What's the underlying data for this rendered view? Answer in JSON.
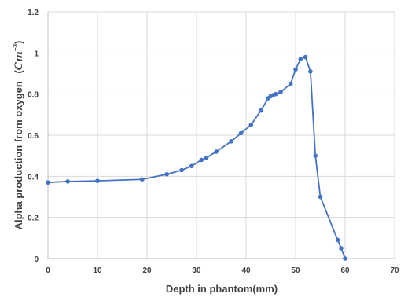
{
  "chart_data": {
    "type": "line",
    "xlabel": "Depth  in phantom(mm)",
    "ylabel_text": "Alpha production from oxygen",
    "ylabel_unit_base": "Cm",
    "ylabel_unit_exp": "−3",
    "xlim": [
      0,
      70
    ],
    "ylim": [
      0,
      1.2
    ],
    "x_ticks": [
      0,
      10,
      20,
      30,
      40,
      50,
      60,
      70
    ],
    "y_ticks": [
      0,
      0.2,
      0.4,
      0.6,
      0.8,
      1,
      1.2
    ],
    "x_tick_labels": [
      "0",
      "10",
      "20",
      "30",
      "40",
      "50",
      "60",
      "70"
    ],
    "y_tick_labels": [
      "0",
      "0.2",
      "0.4",
      "0.6",
      "0.8",
      "1",
      "1.2"
    ],
    "grid": true,
    "series_color": "#4472c4",
    "series": [
      {
        "x": [
          0,
          4,
          10,
          19,
          24,
          27,
          29,
          31,
          32,
          34,
          37,
          39,
          41,
          43,
          44.5,
          45,
          45.5,
          46,
          47,
          49,
          50,
          51,
          52,
          53,
          54,
          55,
          58.5,
          59.2,
          60
        ],
        "y": [
          0.37,
          0.375,
          0.378,
          0.385,
          0.41,
          0.43,
          0.45,
          0.48,
          0.49,
          0.52,
          0.57,
          0.61,
          0.65,
          0.72,
          0.78,
          0.79,
          0.795,
          0.8,
          0.81,
          0.85,
          0.92,
          0.97,
          0.98,
          0.91,
          0.5,
          0.3,
          0.09,
          0.05,
          0.0
        ]
      }
    ]
  }
}
